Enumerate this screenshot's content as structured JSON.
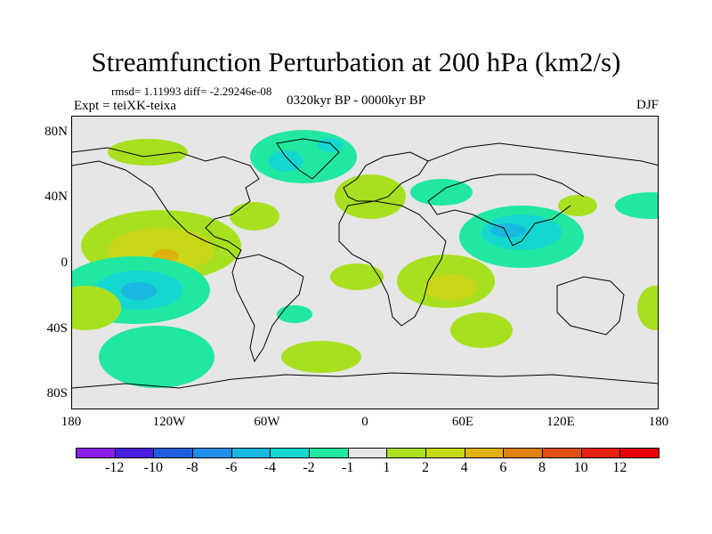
{
  "title": "Streamfunction Perturbation at 200 hPa (km2/s)",
  "stats": "rmsd= 1.11993 diff= -2.29246e-08",
  "experiment": "Expt = teiXK-teixa",
  "period": "0320kyr BP - 0000kyr BP",
  "season": "DJF",
  "lat_labels": [
    "80N",
    "40N",
    "0",
    "40S",
    "80S"
  ],
  "lon_labels": [
    "180",
    "120W",
    "60W",
    "0",
    "60E",
    "120E",
    "180"
  ],
  "colorbar": {
    "levels": [
      "-12",
      "-10",
      "-8",
      "-6",
      "-4",
      "-2",
      "-1",
      "1",
      "2",
      "4",
      "6",
      "8",
      "10",
      "12"
    ],
    "colors": [
      "#8a1fe8",
      "#4a1fe0",
      "#1f5ee0",
      "#1e90e8",
      "#19b8e0",
      "#14d8d0",
      "#20e8a0",
      "#e6e6e6",
      "#a8e020",
      "#c8d818",
      "#e0b010",
      "#e08010",
      "#e05010",
      "#e82010",
      "#e80000"
    ]
  }
}
